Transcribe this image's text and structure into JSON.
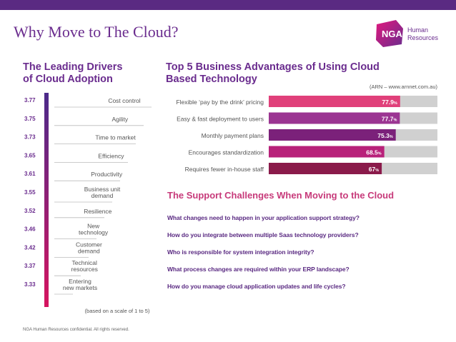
{
  "slide": {
    "title": "Why Move to The Cloud?",
    "logo": {
      "main": "NGA",
      "line1": "Human",
      "line2": "Resources"
    },
    "footer": "NGA Human Resources confidential. All rights reserved."
  },
  "colors": {
    "topbar": "#5a2a82",
    "title": "#6a2c8e",
    "logo_gradient": [
      "#e2187d",
      "#6a2c8e"
    ],
    "left_scale_gradient": [
      "#4b2a8a",
      "#d6145f"
    ],
    "bar_colors": [
      "#e0407a",
      "#9b3592",
      "#7b217a",
      "#b8217a",
      "#8a1a4a"
    ],
    "track": "#d0d0d0",
    "support_title": "#c73a7a",
    "questions": "#5a2a82"
  },
  "chart_data": [
    {
      "type": "table",
      "title": "The Leading Drivers of Cloud Adoption",
      "title_lines": [
        "The Leading Drivers",
        "of Cloud Adoption"
      ],
      "note": "(based on a scale of 1 to 5)",
      "rows": [
        {
          "score": "3.77",
          "label": [
            "Cost control"
          ]
        },
        {
          "score": "3.75",
          "label": [
            "Agility"
          ]
        },
        {
          "score": "3.73",
          "label": [
            "Time to market"
          ]
        },
        {
          "score": "3.65",
          "label": [
            "Efficiency"
          ]
        },
        {
          "score": "3.61",
          "label": [
            "Productivity"
          ]
        },
        {
          "score": "3.55",
          "label": [
            "Business unit",
            "demand"
          ]
        },
        {
          "score": "3.52",
          "label": [
            "Resilience"
          ]
        },
        {
          "score": "3.46",
          "label": [
            "New",
            "technology"
          ]
        },
        {
          "score": "3.42",
          "label": [
            "Customer",
            "demand"
          ]
        },
        {
          "score": "3.37",
          "label": [
            "Technical",
            "resources"
          ]
        },
        {
          "score": "3.33",
          "label": [
            "Entering",
            "new markets"
          ]
        }
      ]
    },
    {
      "type": "bar",
      "orientation": "horizontal",
      "title": "Top 5 Business Advantages of Using Cloud Based Technology",
      "title_lines": [
        "Top 5 Business Advantages of Using Cloud",
        "Based Technology"
      ],
      "source": "(ARN – www.arnnet.com.au)",
      "categories": [
        "Flexible ‘pay by the drink’ pricing",
        "Easy & fast deployment to users",
        "Monthly payment plans",
        "Encourages standardization",
        "Requires fewer in-house staff"
      ],
      "values": [
        77.9,
        77.7,
        75.3,
        68.5,
        67
      ],
      "value_labels": [
        "77.9",
        "77.7",
        "75.3",
        "68.5",
        "67"
      ],
      "unit": "%",
      "xlim": [
        0,
        100
      ]
    }
  ],
  "support": {
    "title": "The Support Challenges When Moving to the Cloud",
    "questions": [
      "What changes need to happen in your application support strategy?",
      "How do you integrate between multiple Saas technology providers?",
      "Who is responsible for system integration integrity?",
      "What process changes are required within your ERP landscape?",
      "How do you manage cloud application updates and life cycles?"
    ]
  }
}
